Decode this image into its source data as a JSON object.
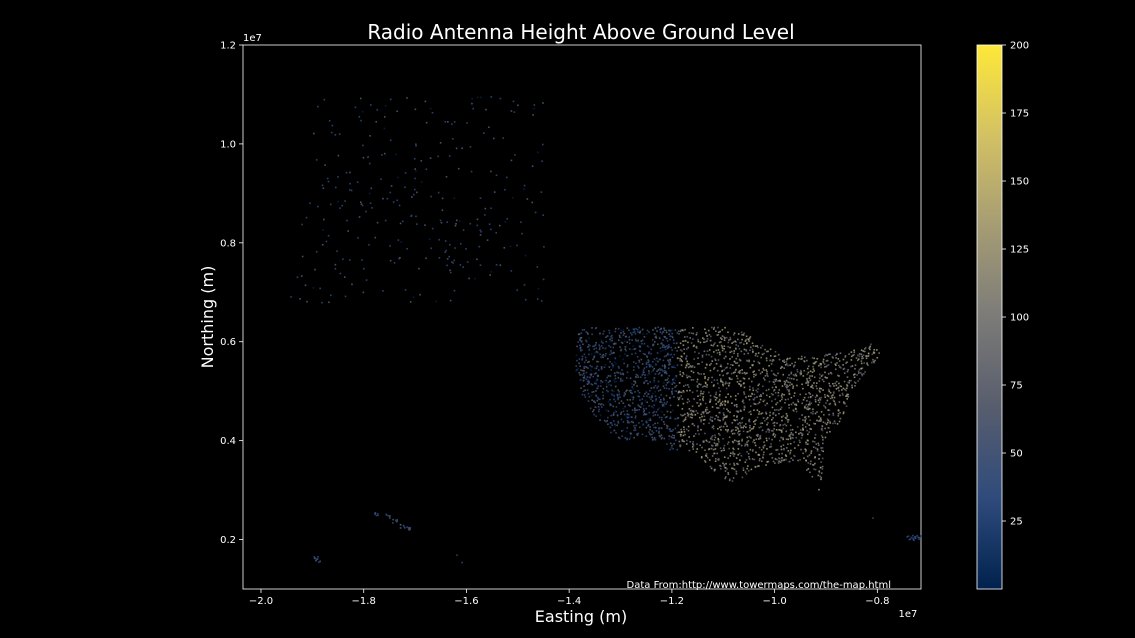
{
  "chart_data": {
    "type": "scatter",
    "title": "Radio Antenna Height Above Ground Level",
    "xlabel": "Easting (m)",
    "ylabel": "Northing (m)",
    "x_offset_label": "1e7",
    "y_offset_label": "1e7",
    "xlim": [
      -2.035,
      -0.715
    ],
    "ylim": [
      0.1,
      1.2
    ],
    "x_ticks": [
      -2.0,
      -1.8,
      -1.6,
      -1.4,
      -1.2,
      -1.0,
      -0.8
    ],
    "x_tick_labels": [
      "−2.0",
      "−1.8",
      "−1.6",
      "−1.4",
      "−1.2",
      "−1.0",
      "−0.8"
    ],
    "y_ticks": [
      0.2,
      0.4,
      0.6,
      0.8,
      1.0,
      1.2
    ],
    "y_tick_labels": [
      "0.2",
      "0.4",
      "0.6",
      "0.8",
      "1.0",
      "1.2"
    ],
    "grid": false,
    "colorbar": {
      "label": "",
      "range": [
        0,
        200
      ],
      "ticks": [
        25,
        50,
        75,
        100,
        125,
        150,
        175,
        200
      ],
      "tick_labels": [
        "25",
        "50",
        "75",
        "100",
        "125",
        "150",
        "175",
        "200"
      ],
      "colormap": "cividis",
      "colors": [
        "#00224e",
        "#2f4b7c",
        "#575d6d",
        "#7c7b78",
        "#a59c74",
        "#d3c164",
        "#fee838"
      ]
    },
    "annotation": "Data From:http://www.towermaps.com/the-map.html",
    "colors": {
      "background": "#000000",
      "foreground": "#ffffff"
    }
  }
}
